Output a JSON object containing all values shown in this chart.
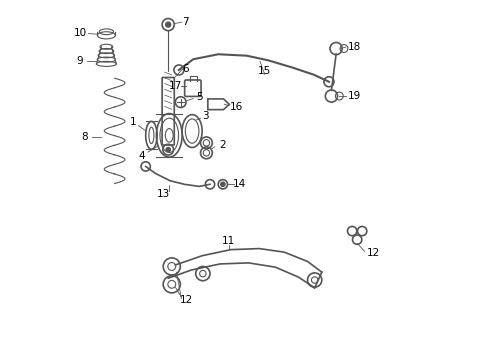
{
  "bg_color": "#ffffff",
  "line_color": "#555555",
  "label_color": "#000000",
  "figsize": [
    4.9,
    3.6
  ],
  "dpi": 100
}
